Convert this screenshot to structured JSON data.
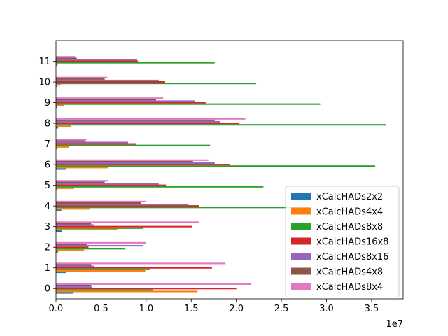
{
  "chart_data": {
    "type": "bar",
    "orientation": "horizontal",
    "categories": [
      "0",
      "1",
      "2",
      "3",
      "4",
      "5",
      "6",
      "7",
      "8",
      "9",
      "10",
      "11"
    ],
    "series": [
      {
        "name": "xCalcHADs2x2",
        "color": "#1f77b4",
        "values": [
          1900000,
          1100000,
          250000,
          700000,
          600000,
          150000,
          1150000,
          100000,
          250000,
          150000,
          100000,
          100000
        ]
      },
      {
        "name": "xCalcHADs4x4",
        "color": "#ff7f0e",
        "values": [
          15700000,
          9900000,
          3100000,
          6800000,
          3800000,
          2000000,
          5800000,
          1400000,
          1700000,
          900000,
          500000,
          200000
        ]
      },
      {
        "name": "xCalcHADs8x8",
        "color": "#2ca02c",
        "values": [
          10800000,
          10400000,
          7700000,
          9700000,
          28000000,
          23000000,
          35400000,
          17100000,
          36600000,
          29300000,
          22200000,
          17600000
        ]
      },
      {
        "name": "xCalcHADs16x8",
        "color": "#d62728",
        "values": [
          20000000,
          17300000,
          3600000,
          15100000,
          15900000,
          12200000,
          19300000,
          8900000,
          20300000,
          16600000,
          12100000,
          9100000
        ]
      },
      {
        "name": "xCalcHADs8x16",
        "color": "#9467bd",
        "values": [
          4000000,
          4200000,
          9700000,
          4200000,
          14700000,
          11400000,
          17600000,
          8000000,
          18200000,
          15400000,
          11400000,
          9000000
        ]
      },
      {
        "name": "xCalcHADs4x8",
        "color": "#8c564b",
        "values": [
          3900000,
          3900000,
          3400000,
          3900000,
          9400000,
          5400000,
          15200000,
          3200000,
          17600000,
          11100000,
          5400000,
          2300000
        ]
      },
      {
        "name": "xCalcHADs8x4",
        "color": "#e377c2",
        "values": [
          21600000,
          18800000,
          10000000,
          15900000,
          10000000,
          5800000,
          16900000,
          3400000,
          21000000,
          11900000,
          5700000,
          2100000
        ]
      }
    ],
    "x_ticks": [
      0,
      5000000,
      10000000,
      15000000,
      20000000,
      25000000,
      30000000,
      35000000
    ],
    "x_tick_labels": [
      "0.0",
      "0.5",
      "1.0",
      "1.5",
      "2.0",
      "2.5",
      "3.0",
      "3.5"
    ],
    "x_offset_label": "1e7",
    "xlim": [
      0,
      38500000
    ],
    "title": "",
    "xlabel": "",
    "ylabel": "",
    "grid": false,
    "legend_position": "lower-right"
  }
}
